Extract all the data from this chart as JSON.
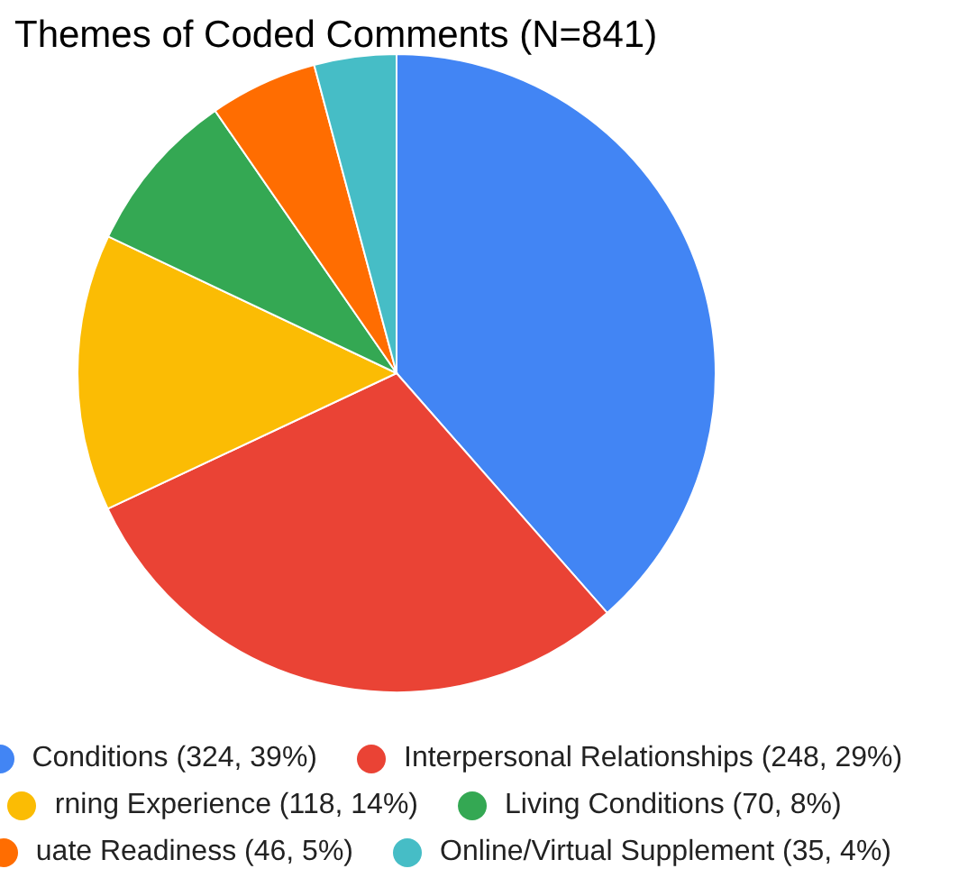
{
  "chart_data": {
    "type": "pie",
    "title": "Themes of Coded Comments (N=841)",
    "categories": [
      "Conditions (324, 39%)",
      "Interpersonal Relationships (248, 29%)",
      "rning Experience (118, 14%)",
      "Living Conditions (70, 8%)",
      "uate Readiness (46, 5%)",
      "Online/Virtual Supplement (35, 4%)"
    ],
    "values": [
      324,
      248,
      118,
      70,
      46,
      35
    ],
    "colors": [
      "#4285f4",
      "#ea4335",
      "#fbbc04",
      "#34a853",
      "#ff6d01",
      "#46bdc6"
    ],
    "legend": "bottom"
  }
}
